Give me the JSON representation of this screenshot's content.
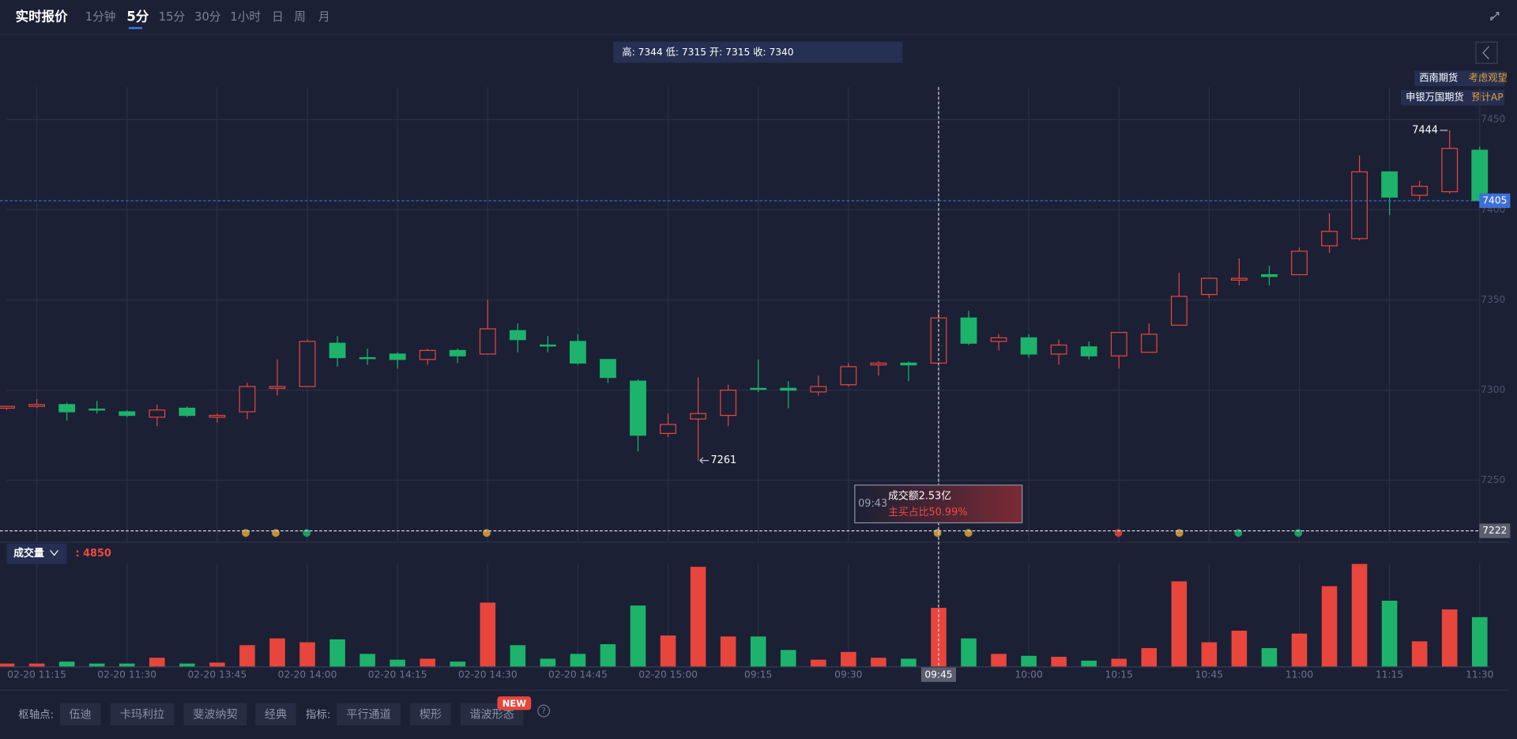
{
  "header": {
    "title": "实时报价",
    "tabs": [
      "1分钟",
      "5分",
      "15分",
      "30分",
      "1小时",
      "日",
      "周",
      "月"
    ],
    "info_bar": "高: 7344 低: 7315 开: 7315 收: 7340",
    "side_labels": [
      {
        "name": "西南期货",
        "view": "考虑观望"
      },
      {
        "name": "申银万国期货",
        "view": "预计AP"
      }
    ]
  },
  "tooltip": {
    "time": "09:43",
    "turnover": "成交额2.53亿",
    "buy_ratio": "主买占比50.99%"
  },
  "volume_panel": {
    "title": "成交量",
    "readout": ": 4850"
  },
  "toolbar": {
    "pivot_label": "枢轴点:",
    "pivot_buttons": [
      "伍迪",
      "卡玛利拉",
      "斐波纳契",
      "经典"
    ],
    "indicator_label": "指标:",
    "indicator_buttons": [
      "平行通道",
      "楔形",
      "谐波形态"
    ],
    "badge": "NEW",
    "help": "?"
  },
  "chart_data": {
    "type": "candlestick",
    "categories": [
      null,
      "02-20 11:15",
      null,
      null,
      "02-20 11:30",
      null,
      null,
      "02-20 13:45",
      null,
      null,
      "02-20 14:00",
      null,
      null,
      "02-20 14:15",
      null,
      null,
      "02-20 14:30",
      null,
      null,
      "02-20 14:45",
      null,
      null,
      "02-20 15:00",
      null,
      null,
      "09:15",
      null,
      null,
      "09:30",
      null,
      null,
      "09:45",
      null,
      null,
      "10:00",
      null,
      null,
      "10:15",
      null,
      null,
      "10:45",
      null,
      null,
      "11:00",
      null,
      null,
      "11:15",
      null,
      null,
      "11:30"
    ],
    "open": [
      7290,
      7291,
      7292,
      7289.5,
      7288,
      7285,
      7290,
      7285,
      7288,
      7301,
      7302,
      7326,
      7318,
      7320,
      7317,
      7322,
      7320,
      7333,
      7325,
      7327,
      7317,
      7305,
      7276,
      7284,
      7286,
      7301,
      7301,
      7299,
      7303,
      7314,
      7315,
      7315,
      7340,
      7327,
      7329,
      7320,
      7324,
      7319,
      7321,
      7336,
      7353,
      7361,
      7364,
      7364,
      7380,
      7384,
      7421,
      7408,
      7410,
      7433
    ],
    "high": [
      7291,
      7295,
      7293,
      7294,
      7289,
      7292,
      7291,
      7287,
      7304,
      7317,
      7328,
      7330,
      7323,
      7321,
      7323,
      7323,
      7350,
      7337,
      7330,
      7331,
      7317,
      7306,
      7287,
      7307,
      7303,
      7317,
      7305,
      7308,
      7315,
      7316,
      7316,
      7344,
      7344,
      7331,
      7331,
      7328,
      7327,
      7332,
      7337,
      7365,
      7362,
      7373,
      7369,
      7379,
      7398,
      7430,
      7421,
      7416,
      7444,
      7435
    ],
    "low": [
      7289,
      7290,
      7283,
      7287,
      7285,
      7280,
      7285,
      7282,
      7284,
      7297,
      7302,
      7313,
      7314,
      7312,
      7314,
      7315,
      7320,
      7321,
      7321,
      7314,
      7304,
      7266,
      7274,
      7261,
      7280,
      7299,
      7290,
      7297,
      7302,
      7308,
      7305,
      7315,
      7325,
      7322,
      7318,
      7314,
      7317,
      7312,
      7321,
      7336,
      7351,
      7358,
      7358,
      7364,
      7376,
      7383,
      7397,
      7405,
      7409,
      7405
    ],
    "close": [
      7291,
      7292,
      7288,
      7289,
      7286,
      7289,
      7286,
      7286,
      7302,
      7302,
      7327,
      7318,
      7317.5,
      7317,
      7322,
      7319,
      7334,
      7328,
      7324.5,
      7315,
      7307,
      7275,
      7281,
      7287,
      7300,
      7300.5,
      7300,
      7302,
      7313,
      7315,
      7314,
      7340,
      7326,
      7329,
      7320,
      7325,
      7319,
      7332,
      7331,
      7352,
      7362,
      7362,
      7363,
      7377,
      7388,
      7421,
      7407,
      7413,
      7434,
      7405
    ],
    "volume": [
      240,
      240,
      400,
      240,
      240,
      720,
      240,
      320,
      1760,
      2320,
      2000,
      2240,
      1040,
      560,
      640,
      400,
      5280,
      1760,
      640,
      1040,
      1840,
      5040,
      2560,
      8240,
      2480,
      2480,
      1360,
      560,
      1200,
      720,
      640,
      4850,
      2320,
      1040,
      880,
      800,
      480,
      640,
      1520,
      7040,
      2000,
      2960,
      1520,
      2720,
      6640,
      8480,
      5440,
      2080,
      4720,
      4080
    ],
    "up_color": "#e8453c",
    "down_color": "#1db36b",
    "ylim": [
      7216,
      7468
    ],
    "yticks": [
      7250,
      7300,
      7350,
      7400,
      7450
    ],
    "grid": true,
    "level_line": 7222
  }
}
